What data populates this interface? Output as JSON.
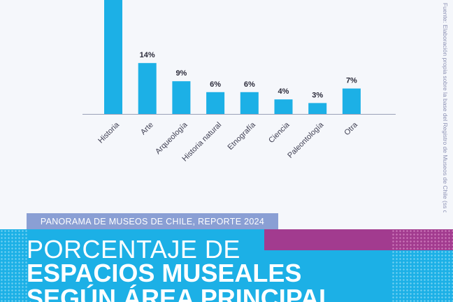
{
  "chart_data": {
    "type": "bar",
    "categories": [
      "Historia",
      "Arte",
      "Arqueología",
      "Historia natural",
      "Etnografía",
      "Ciencia",
      "Paleontología",
      "Otra"
    ],
    "values": [
      null,
      14,
      9,
      6,
      6,
      4,
      3,
      7
    ],
    "data_labels": [
      "",
      "14%",
      "9%",
      "6%",
      "6%",
      "4%",
      "3%",
      "7%"
    ],
    "bar_color": "#1cb0e6",
    "grid": false,
    "legend": "none"
  },
  "source_note": "Fuente: Elaboración propia sobre la base del Registro de Museos de Chile (ss de ab",
  "report_label": "PANORAMA DE MUSEOS DE CHILE, REPORTE 2024",
  "title": {
    "line1": "PORCENTAJE DE",
    "line2": "ESPACIOS MUSEALES",
    "line3": "SEGÚN ÁREA PRINCIPAL"
  },
  "colors": {
    "background": "#f5f7fb",
    "accent_blue": "#1cb0e6",
    "label_band": "#8a9fd4",
    "magenta": "#a23b8f"
  }
}
